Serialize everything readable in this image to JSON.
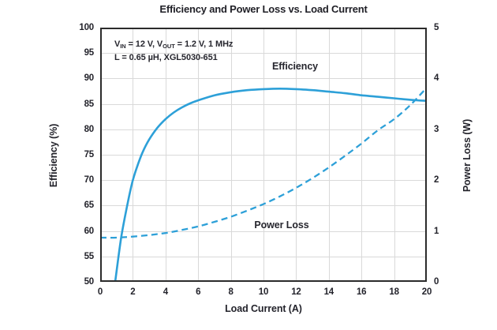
{
  "title": "Efficiency and Power Loss vs. Load Current",
  "annotation": {
    "line1_parts": [
      "V",
      "IN",
      " = 12 V, V",
      "OUT",
      " = 1.2 V, 1 MHz"
    ],
    "line2": "L = 0.65 µH, XGL5030-651"
  },
  "colors": {
    "curve_blue": "#2DA0D8",
    "text_dark": "#23232b",
    "gridline": "#d9d9d9",
    "frame": "#2b2b2b",
    "background": "#ffffff"
  },
  "chart_data": {
    "type": "line",
    "title": "Efficiency and Power Loss vs. Load Current",
    "grid": true,
    "legend": "inline-labels",
    "x_axis": {
      "label": "Load Current (A)",
      "min": 0,
      "max": 20,
      "ticks": [
        0,
        2,
        4,
        6,
        8,
        10,
        12,
        14,
        16,
        18,
        20
      ],
      "gridline_step": 2
    },
    "y_left": {
      "label": "Efficiency (%)",
      "min": 50,
      "max": 100,
      "ticks": [
        100,
        95,
        90,
        85,
        80,
        75,
        70,
        65,
        60,
        55,
        50
      ],
      "gridline_step": 5
    },
    "y_right": {
      "label": "Power Loss (W)",
      "min": 0,
      "max": 5,
      "ticks": [
        5,
        4,
        3,
        2,
        1,
        0
      ]
    },
    "series": [
      {
        "name": "Efficiency",
        "axis": "left",
        "style": "solid",
        "units": "%",
        "points": [
          [
            0.92,
            50
          ],
          [
            1.1,
            54.5
          ],
          [
            1.3,
            59
          ],
          [
            1.5,
            62.5
          ],
          [
            1.75,
            66.5
          ],
          [
            2,
            70
          ],
          [
            2.3,
            73
          ],
          [
            2.6,
            75.5
          ],
          [
            3,
            78
          ],
          [
            3.5,
            80.3
          ],
          [
            4,
            82
          ],
          [
            4.5,
            83.3
          ],
          [
            5,
            84.3
          ],
          [
            5.5,
            85.1
          ],
          [
            6,
            85.7
          ],
          [
            7,
            86.7
          ],
          [
            8,
            87.3
          ],
          [
            9,
            87.7
          ],
          [
            10,
            87.9
          ],
          [
            11,
            88
          ],
          [
            12,
            87.9
          ],
          [
            13,
            87.7
          ],
          [
            14,
            87.4
          ],
          [
            15,
            87.1
          ],
          [
            16,
            86.7
          ],
          [
            17,
            86.4
          ],
          [
            18,
            86.1
          ],
          [
            19,
            85.8
          ],
          [
            20,
            85.6
          ]
        ]
      },
      {
        "name": "Power Loss",
        "axis": "right",
        "style": "dashed",
        "units": "W",
        "points": [
          [
            0,
            0.87
          ],
          [
            1,
            0.87
          ],
          [
            2,
            0.89
          ],
          [
            3,
            0.92
          ],
          [
            4,
            0.96
          ],
          [
            5,
            1.02
          ],
          [
            6,
            1.09
          ],
          [
            7,
            1.18
          ],
          [
            8,
            1.28
          ],
          [
            9,
            1.4
          ],
          [
            10,
            1.53
          ],
          [
            11,
            1.68
          ],
          [
            12,
            1.85
          ],
          [
            13,
            2.04
          ],
          [
            14,
            2.25
          ],
          [
            15,
            2.48
          ],
          [
            16,
            2.72
          ],
          [
            17,
            2.98
          ],
          [
            18,
            3.2
          ],
          [
            19,
            3.48
          ],
          [
            20,
            3.82
          ]
        ]
      }
    ]
  }
}
